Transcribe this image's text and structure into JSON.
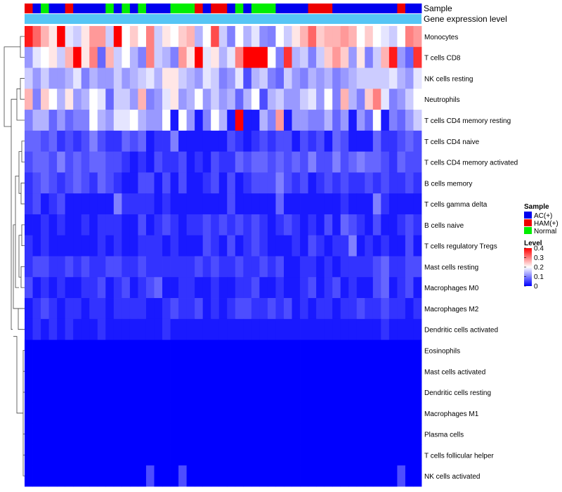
{
  "chart_data": {
    "type": "heatmap",
    "annotations": {
      "sample_label": "Sample",
      "expression_label": "Gene expression level",
      "sample_groups": [
        "HAM(+)",
        "AC(+)",
        "Normal",
        "AC(+)",
        "AC(+)",
        "HAM(+)",
        "AC(+)",
        "AC(+)",
        "AC(+)",
        "AC(+)",
        "Normal",
        "AC(+)",
        "Normal",
        "AC(+)",
        "Normal",
        "AC(+)",
        "AC(+)",
        "AC(+)",
        "Normal",
        "Normal",
        "Normal",
        "HAM(+)",
        "AC(+)",
        "HAM(+)",
        "HAM(+)",
        "AC(+)",
        "Normal",
        "AC(+)",
        "Normal",
        "Normal",
        "Normal",
        "AC(+)",
        "AC(+)",
        "AC(+)",
        "AC(+)",
        "HAM(+)",
        "HAM(+)",
        "HAM(+)",
        "AC(+)",
        "AC(+)",
        "AC(+)",
        "AC(+)",
        "AC(+)",
        "AC(+)",
        "AC(+)",
        "AC(+)",
        "HAM(+)",
        "AC(+)",
        "AC(+)"
      ]
    },
    "rows": [
      "Monocytes",
      "T cells CD8",
      "NK cells resting",
      "Neutrophils",
      "T cells CD4 memory resting",
      "T cells CD4 naive",
      "T cells CD4 memory activated",
      "B cells memory",
      "T cells gamma delta",
      "B cells naive",
      "T cells regulatory  Tregs",
      "Mast cells resting",
      "Macrophages M0",
      "Macrophages M2",
      "Dendritic cells activated",
      "Eosinophils",
      "Mast cells activated",
      "Dendritic cells resting",
      "Macrophages M1",
      "Plasma cells",
      "T cells follicular helper",
      "NK cells activated"
    ],
    "values": [
      [
        0.38,
        0.32,
        0.26,
        0.22,
        0.4,
        0.18,
        0.16,
        0.22,
        0.28,
        0.28,
        0.16,
        0.4,
        0.2,
        0.24,
        0.2,
        0.3,
        0.16,
        0.22,
        0.2,
        0.24,
        0.26,
        0.14,
        0.2,
        0.34,
        0.16,
        0.1,
        0.2,
        0.14,
        0.18,
        0.11,
        0.1,
        0.2,
        0.16,
        0.22,
        0.26,
        0.32,
        0.24,
        0.26,
        0.26,
        0.28,
        0.26,
        0.2,
        0.24,
        0.2,
        0.18,
        0.16,
        0.2,
        0.3,
        0.28
      ],
      [
        0.12,
        0.18,
        0.2,
        0.22,
        0.16,
        0.26,
        0.4,
        0.22,
        0.3,
        0.08,
        0.26,
        0.16,
        0.2,
        0.14,
        0.1,
        0.3,
        0.16,
        0.14,
        0.1,
        0.28,
        0.22,
        0.4,
        0.18,
        0.22,
        0.14,
        0.18,
        0.3,
        0.4,
        0.4,
        0.4,
        0.2,
        0.1,
        0.36,
        0.14,
        0.16,
        0.1,
        0.16,
        0.24,
        0.28,
        0.24,
        0.12,
        0.22,
        0.1,
        0.16,
        0.26,
        0.38,
        0.12,
        0.08,
        0.36
      ],
      [
        0.16,
        0.12,
        0.16,
        0.12,
        0.12,
        0.14,
        0.18,
        0.1,
        0.14,
        0.12,
        0.12,
        0.16,
        0.12,
        0.14,
        0.16,
        0.18,
        0.14,
        0.22,
        0.22,
        0.16,
        0.14,
        0.12,
        0.18,
        0.16,
        0.1,
        0.12,
        0.18,
        0.06,
        0.14,
        0.16,
        0.1,
        0.08,
        0.16,
        0.12,
        0.1,
        0.14,
        0.12,
        0.14,
        0.1,
        0.12,
        0.14,
        0.16,
        0.16,
        0.16,
        0.16,
        0.18,
        0.14,
        0.12,
        0.18
      ],
      [
        0.26,
        0.1,
        0.24,
        0.2,
        0.14,
        0.22,
        0.12,
        0.14,
        0.2,
        0.18,
        0.08,
        0.16,
        0.16,
        0.12,
        0.26,
        0.1,
        0.12,
        0.18,
        0.22,
        0.12,
        0.14,
        0.2,
        0.12,
        0.16,
        0.12,
        0.14,
        0.08,
        0.14,
        0.2,
        0.06,
        0.14,
        0.16,
        0.12,
        0.12,
        0.16,
        0.18,
        0.12,
        0.2,
        0.1,
        0.26,
        0.14,
        0.1,
        0.24,
        0.3,
        0.18,
        0.1,
        0.12,
        0.16,
        0.2
      ],
      [
        0.1,
        0.14,
        0.14,
        0.08,
        0.12,
        0.08,
        0.1,
        0.1,
        0.2,
        0.14,
        0.12,
        0.18,
        0.18,
        0.2,
        0.14,
        0.12,
        0.12,
        0.2,
        0.02,
        0.2,
        0.12,
        0.02,
        0.1,
        0.2,
        0.14,
        0.02,
        0.4,
        0.02,
        0.02,
        0.14,
        0.1,
        0.28,
        0.02,
        0.12,
        0.12,
        0.1,
        0.1,
        0.14,
        0.08,
        0.12,
        0.02,
        0.12,
        0.08,
        0.2,
        0.02,
        0.1,
        0.08,
        0.12,
        0.16
      ],
      [
        0.08,
        0.08,
        0.06,
        0.08,
        0.04,
        0.06,
        0.04,
        0.06,
        0.1,
        0.06,
        0.04,
        0.04,
        0.08,
        0.06,
        0.08,
        0.02,
        0.04,
        0.04,
        0.1,
        0.02,
        0.02,
        0.02,
        0.02,
        0.02,
        0.02,
        0.06,
        0.04,
        0.02,
        0.04,
        0.06,
        0.04,
        0.06,
        0.06,
        0.02,
        0.06,
        0.04,
        0.06,
        0.02,
        0.08,
        0.06,
        0.02,
        0.02,
        0.02,
        0.08,
        0.04,
        0.04,
        0.06,
        0.08,
        0.06
      ],
      [
        0.06,
        0.08,
        0.08,
        0.06,
        0.1,
        0.06,
        0.08,
        0.06,
        0.08,
        0.08,
        0.06,
        0.06,
        0.04,
        0.02,
        0.04,
        0.02,
        0.06,
        0.04,
        0.04,
        0.06,
        0.02,
        0.04,
        0.02,
        0.06,
        0.04,
        0.04,
        0.08,
        0.06,
        0.08,
        0.08,
        0.06,
        0.08,
        0.06,
        0.08,
        0.06,
        0.1,
        0.06,
        0.06,
        0.1,
        0.06,
        0.08,
        0.1,
        0.08,
        0.08,
        0.06,
        0.04,
        0.08,
        0.06,
        0.06
      ],
      [
        0.04,
        0.06,
        0.08,
        0.06,
        0.04,
        0.06,
        0.08,
        0.06,
        0.04,
        0.08,
        0.06,
        0.04,
        0.02,
        0.02,
        0.06,
        0.06,
        0.02,
        0.06,
        0.02,
        0.06,
        0.02,
        0.02,
        0.04,
        0.06,
        0.02,
        0.06,
        0.02,
        0.04,
        0.06,
        0.06,
        0.06,
        0.1,
        0.06,
        0.04,
        0.06,
        0.02,
        0.04,
        0.06,
        0.04,
        0.06,
        0.04,
        0.04,
        0.06,
        0.04,
        0.06,
        0.04,
        0.04,
        0.06,
        0.04
      ],
      [
        0.04,
        0.06,
        0.02,
        0.04,
        0.06,
        0.02,
        0.02,
        0.02,
        0.02,
        0.02,
        0.02,
        0.1,
        0.04,
        0.04,
        0.04,
        0.04,
        0.02,
        0.04,
        0.02,
        0.02,
        0.02,
        0.02,
        0.02,
        0.02,
        0.02,
        0.06,
        0.02,
        0.02,
        0.02,
        0.02,
        0.02,
        0.08,
        0.02,
        0.02,
        0.02,
        0.02,
        0.02,
        0.02,
        0.02,
        0.04,
        0.02,
        0.02,
        0.02,
        0.1,
        0.04,
        0.02,
        0.02,
        0.02,
        0.02
      ],
      [
        0.02,
        0.02,
        0.04,
        0.02,
        0.04,
        0.02,
        0.02,
        0.04,
        0.02,
        0.04,
        0.04,
        0.04,
        0.02,
        0.02,
        0.06,
        0.02,
        0.04,
        0.06,
        0.04,
        0.02,
        0.04,
        0.04,
        0.06,
        0.04,
        0.06,
        0.04,
        0.06,
        0.04,
        0.06,
        0.04,
        0.02,
        0.04,
        0.06,
        0.04,
        0.02,
        0.04,
        0.02,
        0.06,
        0.02,
        0.08,
        0.06,
        0.04,
        0.02,
        0.06,
        0.02,
        0.02,
        0.04,
        0.06,
        0.04
      ],
      [
        0.04,
        0.02,
        0.04,
        0.02,
        0.02,
        0.02,
        0.02,
        0.02,
        0.02,
        0.04,
        0.02,
        0.04,
        0.02,
        0.02,
        0.04,
        0.04,
        0.04,
        0.02,
        0.04,
        0.02,
        0.02,
        0.02,
        0.06,
        0.04,
        0.02,
        0.06,
        0.02,
        0.04,
        0.06,
        0.04,
        0.02,
        0.02,
        0.02,
        0.04,
        0.02,
        0.06,
        0.04,
        0.02,
        0.04,
        0.04,
        0.1,
        0.02,
        0.04,
        0.02,
        0.04,
        0.02,
        0.02,
        0.06,
        0.02
      ],
      [
        0.04,
        0.06,
        0.06,
        0.04,
        0.04,
        0.06,
        0.04,
        0.06,
        0.04,
        0.04,
        0.06,
        0.06,
        0.04,
        0.04,
        0.06,
        0.04,
        0.04,
        0.04,
        0.04,
        0.04,
        0.04,
        0.06,
        0.04,
        0.06,
        0.04,
        0.04,
        0.06,
        0.04,
        0.04,
        0.06,
        0.04,
        0.06,
        0.02,
        0.02,
        0.04,
        0.04,
        0.02,
        0.04,
        0.02,
        0.04,
        0.04,
        0.04,
        0.04,
        0.06,
        0.08,
        0.04,
        0.04,
        0.06,
        0.06
      ],
      [
        0.06,
        0.02,
        0.04,
        0.02,
        0.04,
        0.02,
        0.02,
        0.04,
        0.04,
        0.06,
        0.02,
        0.04,
        0.06,
        0.02,
        0.04,
        0.06,
        0.08,
        0.02,
        0.02,
        0.04,
        0.04,
        0.02,
        0.02,
        0.04,
        0.02,
        0.02,
        0.04,
        0.04,
        0.06,
        0.02,
        0.02,
        0.04,
        0.02,
        0.02,
        0.04,
        0.06,
        0.02,
        0.04,
        0.06,
        0.02,
        0.04,
        0.02,
        0.02,
        0.06,
        0.08,
        0.02,
        0.04,
        0.06,
        0.02
      ],
      [
        0.02,
        0.04,
        0.06,
        0.04,
        0.02,
        0.04,
        0.04,
        0.02,
        0.04,
        0.04,
        0.02,
        0.04,
        0.04,
        0.04,
        0.04,
        0.02,
        0.02,
        0.04,
        0.06,
        0.04,
        0.04,
        0.06,
        0.02,
        0.04,
        0.02,
        0.04,
        0.06,
        0.06,
        0.04,
        0.04,
        0.06,
        0.04,
        0.06,
        0.02,
        0.04,
        0.02,
        0.04,
        0.04,
        0.02,
        0.04,
        0.04,
        0.06,
        0.04,
        0.04,
        0.06,
        0.04,
        0.04,
        0.02,
        0.04
      ],
      [
        0.02,
        0.04,
        0.02,
        0.04,
        0.02,
        0.04,
        0.02,
        0.02,
        0.02,
        0.04,
        0.02,
        0.02,
        0.02,
        0.02,
        0.02,
        0.02,
        0.02,
        0.04,
        0.02,
        0.02,
        0.02,
        0.02,
        0.02,
        0.02,
        0.02,
        0.02,
        0.02,
        0.02,
        0.02,
        0.02,
        0.02,
        0.02,
        0.02,
        0.02,
        0.02,
        0.02,
        0.02,
        0.02,
        0.02,
        0.02,
        0.02,
        0.02,
        0.02,
        0.02,
        0.04,
        0.02,
        0.02,
        0.02,
        0.02
      ],
      [
        0,
        0,
        0,
        0,
        0,
        0,
        0,
        0,
        0,
        0,
        0,
        0,
        0,
        0,
        0,
        0,
        0,
        0,
        0,
        0,
        0,
        0,
        0,
        0,
        0,
        0,
        0,
        0,
        0,
        0,
        0,
        0,
        0,
        0,
        0,
        0,
        0,
        0,
        0,
        0,
        0,
        0,
        0,
        0,
        0,
        0,
        0,
        0,
        0
      ],
      [
        0,
        0,
        0,
        0,
        0,
        0,
        0,
        0,
        0,
        0,
        0,
        0,
        0,
        0,
        0,
        0,
        0,
        0,
        0,
        0,
        0,
        0,
        0,
        0,
        0,
        0,
        0,
        0,
        0,
        0,
        0,
        0,
        0,
        0,
        0,
        0,
        0,
        0,
        0,
        0,
        0,
        0,
        0,
        0,
        0,
        0,
        0,
        0,
        0
      ],
      [
        0,
        0,
        0,
        0,
        0,
        0,
        0,
        0,
        0,
        0,
        0,
        0,
        0,
        0,
        0,
        0,
        0,
        0,
        0,
        0,
        0,
        0,
        0,
        0,
        0,
        0,
        0,
        0,
        0,
        0,
        0,
        0,
        0,
        0,
        0,
        0,
        0,
        0,
        0,
        0,
        0,
        0,
        0,
        0,
        0,
        0,
        0,
        0,
        0
      ],
      [
        0,
        0,
        0,
        0,
        0,
        0,
        0,
        0,
        0,
        0,
        0,
        0,
        0,
        0,
        0,
        0,
        0,
        0,
        0,
        0,
        0,
        0,
        0,
        0,
        0,
        0,
        0,
        0,
        0,
        0,
        0,
        0,
        0,
        0,
        0,
        0,
        0,
        0,
        0,
        0,
        0,
        0,
        0,
        0,
        0,
        0,
        0,
        0,
        0
      ],
      [
        0,
        0,
        0,
        0,
        0,
        0,
        0,
        0,
        0,
        0,
        0,
        0,
        0,
        0,
        0,
        0,
        0,
        0,
        0,
        0,
        0,
        0,
        0,
        0,
        0,
        0,
        0,
        0,
        0,
        0,
        0,
        0,
        0,
        0,
        0,
        0,
        0,
        0,
        0,
        0,
        0,
        0,
        0,
        0,
        0,
        0,
        0,
        0,
        0
      ],
      [
        0,
        0,
        0,
        0,
        0,
        0,
        0,
        0,
        0,
        0,
        0,
        0,
        0,
        0,
        0,
        0,
        0,
        0,
        0,
        0,
        0,
        0,
        0,
        0,
        0,
        0,
        0,
        0,
        0,
        0,
        0,
        0,
        0,
        0,
        0,
        0,
        0,
        0,
        0,
        0,
        0,
        0,
        0,
        0,
        0,
        0,
        0,
        0,
        0
      ],
      [
        0,
        0,
        0,
        0,
        0,
        0,
        0,
        0,
        0,
        0,
        0,
        0,
        0,
        0,
        0,
        0.06,
        0,
        0,
        0,
        0.06,
        0,
        0,
        0,
        0,
        0,
        0,
        0,
        0,
        0,
        0,
        0,
        0,
        0,
        0,
        0,
        0,
        0,
        0,
        0,
        0,
        0,
        0,
        0,
        0,
        0,
        0,
        0.06,
        0,
        0
      ]
    ],
    "color_scale": {
      "min": 0,
      "mid": 0.2,
      "max": 0.4,
      "low": "#0000ff",
      "midcolor": "#ffffff",
      "high": "#ff0000"
    },
    "legend": {
      "sample_title": "Sample",
      "groups": [
        {
          "label": "AC(+)",
          "color": "#0000ee"
        },
        {
          "label": "HAM(+)",
          "color": "#ee0000"
        },
        {
          "label": "Normal",
          "color": "#00ee00"
        }
      ],
      "level_title": "Level",
      "ticks": [
        "0.4",
        "0.3",
        "0.2",
        "0.1",
        "0"
      ],
      "tick_values": [
        0.4,
        0.3,
        0.2,
        0.1,
        0
      ]
    }
  }
}
